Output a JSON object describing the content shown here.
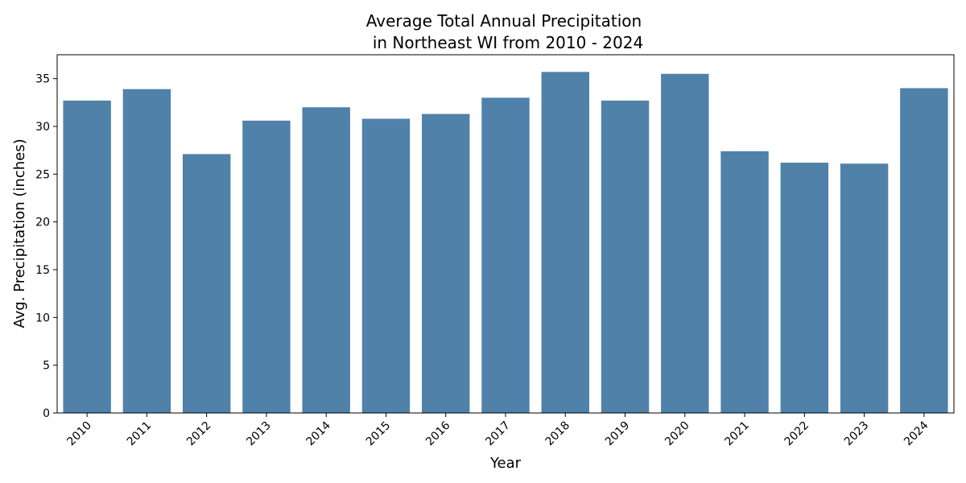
{
  "chart_data": {
    "type": "bar",
    "title_lines": [
      "Average Total Annual Precipitation",
      "in Northeast WI from 2010 - 2024"
    ],
    "xlabel": "Year",
    "ylabel": "Avg. Precipitation (inches)",
    "categories": [
      "2010",
      "2011",
      "2012",
      "2013",
      "2014",
      "2015",
      "2016",
      "2017",
      "2018",
      "2019",
      "2020",
      "2021",
      "2022",
      "2023",
      "2024"
    ],
    "values": [
      32.7,
      33.9,
      27.1,
      30.6,
      32.0,
      30.8,
      31.3,
      33.0,
      35.7,
      32.7,
      35.5,
      27.4,
      26.2,
      26.1,
      34.0
    ],
    "ylim": [
      0,
      37.5
    ],
    "yticks": [
      "0",
      "5",
      "10",
      "15",
      "20",
      "25",
      "30",
      "35"
    ],
    "xtick_rotation": -45,
    "grid": false,
    "bar_color": "#4f81a9"
  }
}
